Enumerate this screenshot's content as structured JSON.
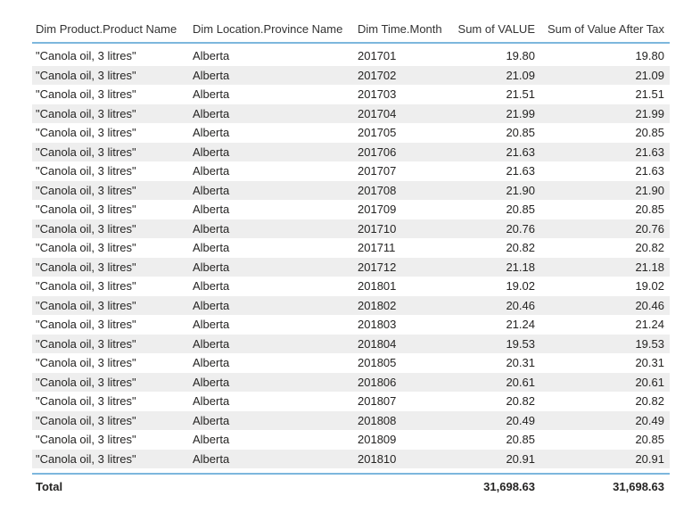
{
  "table": {
    "columns": {
      "product": "Dim Product.Product Name",
      "province": "Dim Location.Province Name",
      "month": "Dim Time.Month",
      "value": "Sum of VALUE",
      "after_tax": "Sum of Value After Tax"
    },
    "rows": [
      {
        "product": "\"Canola oil, 3 litres\"",
        "province": "Alberta",
        "month": "201701",
        "value": "19.80",
        "after_tax": "19.80"
      },
      {
        "product": "\"Canola oil, 3 litres\"",
        "province": "Alberta",
        "month": "201702",
        "value": "21.09",
        "after_tax": "21.09"
      },
      {
        "product": "\"Canola oil, 3 litres\"",
        "province": "Alberta",
        "month": "201703",
        "value": "21.51",
        "after_tax": "21.51"
      },
      {
        "product": "\"Canola oil, 3 litres\"",
        "province": "Alberta",
        "month": "201704",
        "value": "21.99",
        "after_tax": "21.99"
      },
      {
        "product": "\"Canola oil, 3 litres\"",
        "province": "Alberta",
        "month": "201705",
        "value": "20.85",
        "after_tax": "20.85"
      },
      {
        "product": "\"Canola oil, 3 litres\"",
        "province": "Alberta",
        "month": "201706",
        "value": "21.63",
        "after_tax": "21.63"
      },
      {
        "product": "\"Canola oil, 3 litres\"",
        "province": "Alberta",
        "month": "201707",
        "value": "21.63",
        "after_tax": "21.63"
      },
      {
        "product": "\"Canola oil, 3 litres\"",
        "province": "Alberta",
        "month": "201708",
        "value": "21.90",
        "after_tax": "21.90"
      },
      {
        "product": "\"Canola oil, 3 litres\"",
        "province": "Alberta",
        "month": "201709",
        "value": "20.85",
        "after_tax": "20.85"
      },
      {
        "product": "\"Canola oil, 3 litres\"",
        "province": "Alberta",
        "month": "201710",
        "value": "20.76",
        "after_tax": "20.76"
      },
      {
        "product": "\"Canola oil, 3 litres\"",
        "province": "Alberta",
        "month": "201711",
        "value": "20.82",
        "after_tax": "20.82"
      },
      {
        "product": "\"Canola oil, 3 litres\"",
        "province": "Alberta",
        "month": "201712",
        "value": "21.18",
        "after_tax": "21.18"
      },
      {
        "product": "\"Canola oil, 3 litres\"",
        "province": "Alberta",
        "month": "201801",
        "value": "19.02",
        "after_tax": "19.02"
      },
      {
        "product": "\"Canola oil, 3 litres\"",
        "province": "Alberta",
        "month": "201802",
        "value": "20.46",
        "after_tax": "20.46"
      },
      {
        "product": "\"Canola oil, 3 litres\"",
        "province": "Alberta",
        "month": "201803",
        "value": "21.24",
        "after_tax": "21.24"
      },
      {
        "product": "\"Canola oil, 3 litres\"",
        "province": "Alberta",
        "month": "201804",
        "value": "19.53",
        "after_tax": "19.53"
      },
      {
        "product": "\"Canola oil, 3 litres\"",
        "province": "Alberta",
        "month": "201805",
        "value": "20.31",
        "after_tax": "20.31"
      },
      {
        "product": "\"Canola oil, 3 litres\"",
        "province": "Alberta",
        "month": "201806",
        "value": "20.61",
        "after_tax": "20.61"
      },
      {
        "product": "\"Canola oil, 3 litres\"",
        "province": "Alberta",
        "month": "201807",
        "value": "20.82",
        "after_tax": "20.82"
      },
      {
        "product": "\"Canola oil, 3 litres\"",
        "province": "Alberta",
        "month": "201808",
        "value": "20.49",
        "after_tax": "20.49"
      },
      {
        "product": "\"Canola oil, 3 litres\"",
        "province": "Alberta",
        "month": "201809",
        "value": "20.85",
        "after_tax": "20.85"
      },
      {
        "product": "\"Canola oil, 3 litres\"",
        "province": "Alberta",
        "month": "201810",
        "value": "20.91",
        "after_tax": "20.91"
      }
    ],
    "total": {
      "label": "Total",
      "value": "31,698.63",
      "after_tax": "31,698.63"
    }
  },
  "colors": {
    "header_rule": "#7db7dd",
    "alt_row": "#eeeeee",
    "text": "#252423"
  }
}
